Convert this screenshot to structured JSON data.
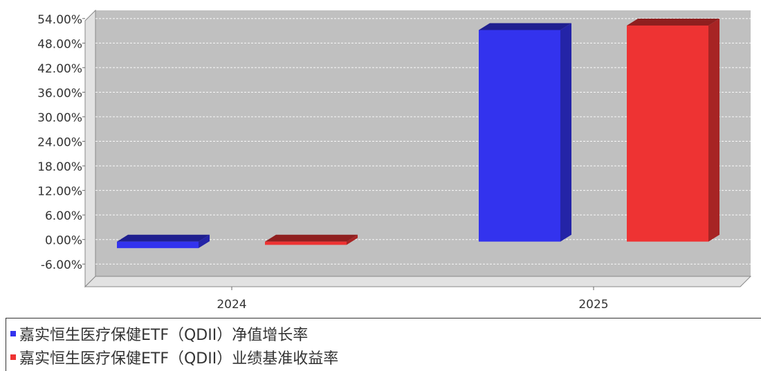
{
  "chart_data": {
    "type": "bar",
    "title": "",
    "xlabel": "",
    "ylabel": "",
    "categories": [
      "2024",
      "2025"
    ],
    "series": [
      {
        "name": "嘉实恒生医疗保健ETF（QDII）净值增长率",
        "color": "#3333ee",
        "values": [
          -1.6,
          51.7
        ]
      },
      {
        "name": "嘉实恒生医疗保健ETF（QDII）业绩基准收益率",
        "color": "#ee3333",
        "values": [
          -0.8,
          52.8
        ]
      }
    ],
    "ylim": [
      -9,
      56
    ],
    "yticks": [
      -6,
      0,
      6,
      12,
      18,
      24,
      30,
      36,
      42,
      48,
      54
    ],
    "ytick_labels": [
      "-6.00%",
      "0.00%",
      "6.00%",
      "12.00%",
      "18.00%",
      "24.00%",
      "30.00%",
      "36.00%",
      "42.00%",
      "48.00%",
      "54.00%"
    ],
    "grid": true,
    "legend_position": "bottom-left"
  }
}
